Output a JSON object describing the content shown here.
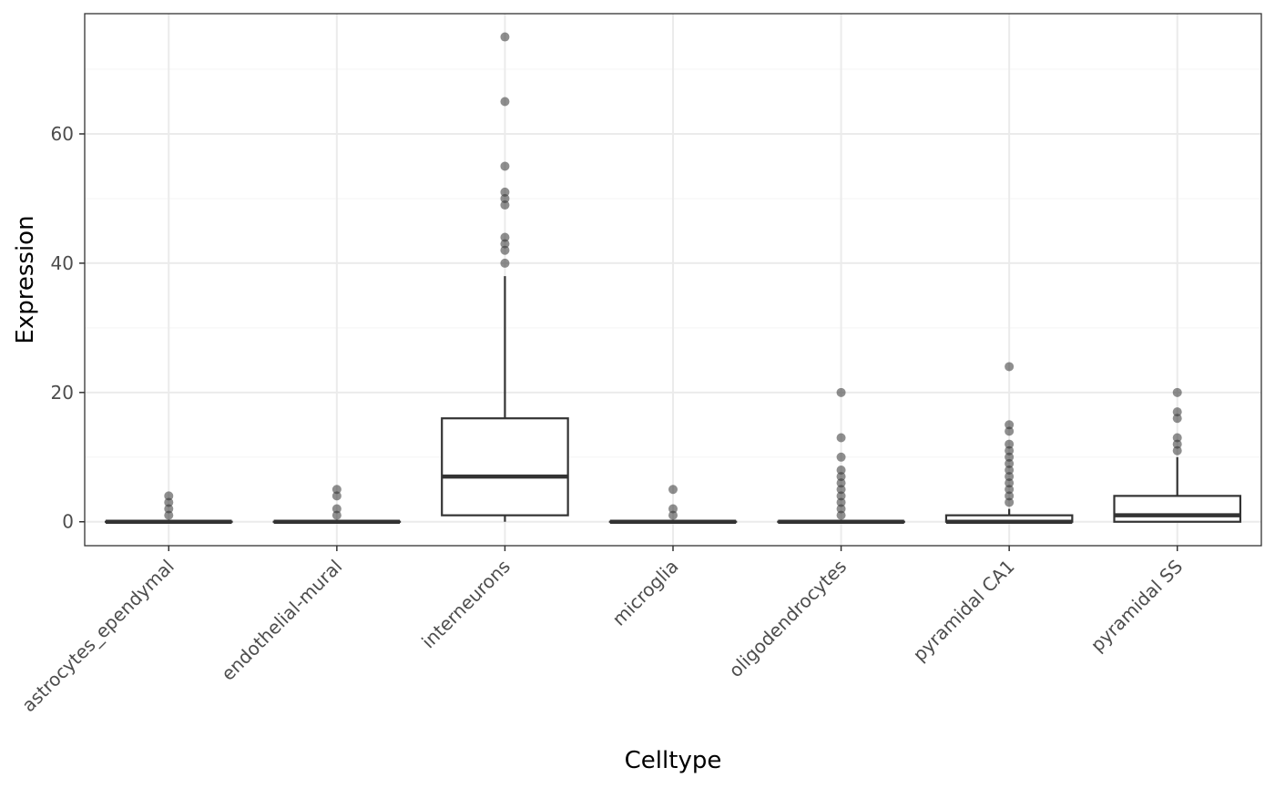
{
  "chart_data": {
    "type": "boxplot",
    "title": "",
    "xlabel": "Celltype",
    "ylabel": "Expression",
    "ylim": [
      -3.7,
      78.6
    ],
    "yticks": [
      0,
      20,
      40,
      60
    ],
    "grid": true,
    "legend": "none",
    "colors": {
      "box_stroke": "#333333",
      "outlier": "#333333",
      "grid_major": "#ebebeb",
      "grid_minor": "#f5f5f5",
      "panel_border": "#333333",
      "tick_label": "#4d4d4d"
    },
    "categories": [
      "astrocytes_ependymal",
      "endothelial-mural",
      "interneurons",
      "microglia",
      "oligodendrocytes",
      "pyramidal CA1",
      "pyramidal SS"
    ],
    "boxes": [
      {
        "q1": 0,
        "median": 0,
        "q3": 0,
        "whisker_low": 0,
        "whisker_high": 0,
        "outliers": [
          1,
          2,
          3,
          4
        ]
      },
      {
        "q1": 0,
        "median": 0,
        "q3": 0,
        "whisker_low": 0,
        "whisker_high": 0,
        "outliers": [
          1,
          2,
          4,
          5
        ]
      },
      {
        "q1": 1,
        "median": 7,
        "q3": 16,
        "whisker_low": 0,
        "whisker_high": 38,
        "outliers": [
          40,
          42,
          43,
          44,
          49,
          50,
          51,
          55,
          65,
          75
        ]
      },
      {
        "q1": 0,
        "median": 0,
        "q3": 0,
        "whisker_low": 0,
        "whisker_high": 0,
        "outliers": [
          1,
          2,
          5
        ]
      },
      {
        "q1": 0,
        "median": 0,
        "q3": 0,
        "whisker_low": 0,
        "whisker_high": 0,
        "outliers": [
          1,
          2,
          3,
          4,
          5,
          6,
          7,
          8,
          10,
          13,
          20
        ]
      },
      {
        "q1": 0,
        "median": 0,
        "q3": 1,
        "whisker_low": 0,
        "whisker_high": 2,
        "outliers": [
          3,
          4,
          5,
          6,
          7,
          8,
          9,
          10,
          11,
          12,
          14,
          15,
          24
        ]
      },
      {
        "q1": 0,
        "median": 1,
        "q3": 4,
        "whisker_low": 0,
        "whisker_high": 10,
        "outliers": [
          11,
          12,
          13,
          16,
          17,
          20
        ]
      }
    ]
  }
}
